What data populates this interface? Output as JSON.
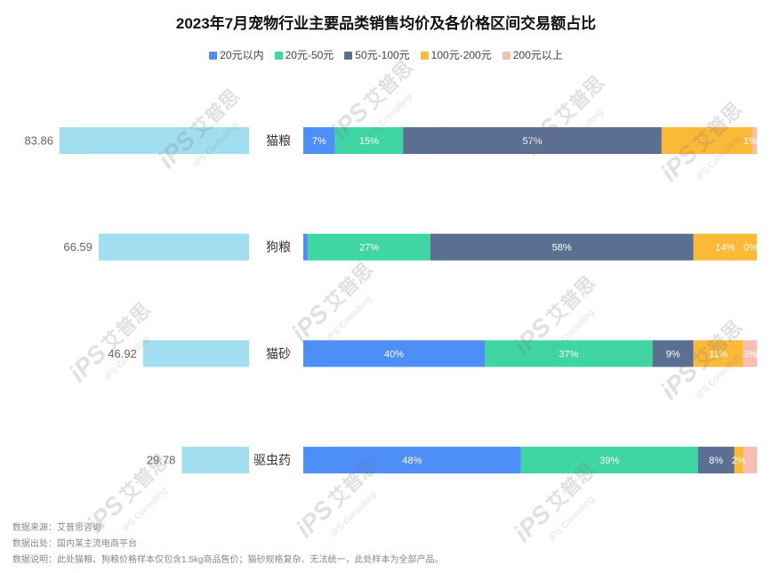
{
  "chart_data": {
    "type": "bar",
    "title": "2023年7月宠物行业主要品类销售均价及各价格区间交易额占比",
    "categories": [
      "猫粮",
      "狗粮",
      "猫砂",
      "驱虫药"
    ],
    "grid": false,
    "avg_price": {
      "type": "bar",
      "orientation": "horizontal",
      "bar_direction": "leftward",
      "values": [
        83.86,
        66.59,
        46.92,
        29.78
      ],
      "xlim": [
        0,
        100
      ],
      "color": "#a0def0"
    },
    "price_share": {
      "type": "bar",
      "orientation": "horizontal",
      "stacked": true,
      "percent": true,
      "xlim": [
        0,
        100
      ],
      "legend": "top-center",
      "series": [
        {
          "name": "20元以内",
          "color": "#4d8ff7",
          "values": [
            7,
            1,
            40,
            48
          ],
          "labels": [
            "7%",
            null,
            "40%",
            "48%"
          ]
        },
        {
          "name": "20元-50元",
          "color": "#3fd6a4",
          "values": [
            15,
            27,
            37,
            39
          ],
          "labels": [
            "15%",
            "27%",
            "37%",
            "39%"
          ]
        },
        {
          "name": "50元-100元",
          "color": "#5a6f91",
          "values": [
            57,
            58,
            9,
            8
          ],
          "labels": [
            "57%",
            "58%",
            "9%",
            "8%"
          ]
        },
        {
          "name": "100元-200元",
          "color": "#fbb938",
          "values": [
            20,
            14,
            11,
            2
          ],
          "labels": [
            null,
            "14%",
            "11%",
            "2%"
          ]
        },
        {
          "name": "200元以上",
          "color": "#f8beb2",
          "values": [
            1,
            0,
            3,
            3
          ],
          "labels": [
            "1%",
            "0%",
            "3%",
            null
          ]
        }
      ]
    }
  },
  "notes": {
    "source": "数据来源：艾普思咨询",
    "origin": "数据出处：国内某主流电商平台",
    "remark": "数据说明：此处猫粮、狗粮价格样本仅包含1.5kg商品售价；猫砂规格复杂、无法统一，此处样本为全部产品。"
  },
  "watermark": {
    "logo": "iPS",
    "brand": "艾普思",
    "en": "IPS Consulting"
  }
}
